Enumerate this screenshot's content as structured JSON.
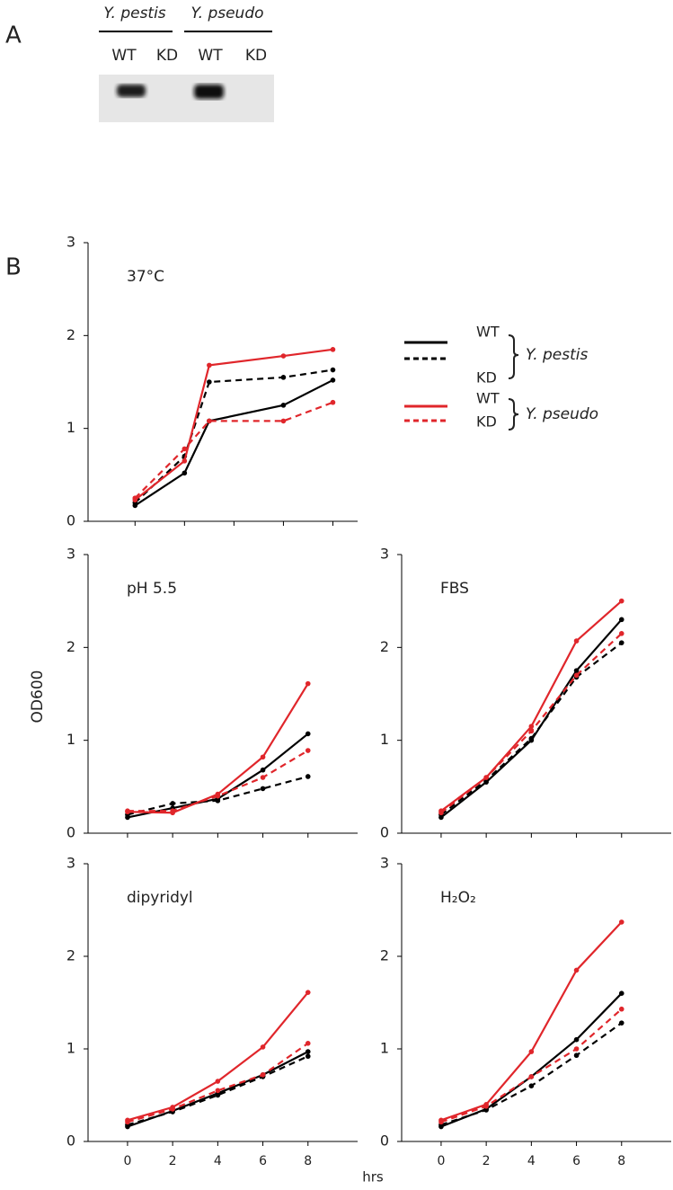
{
  "panel_a": {
    "label": "A",
    "groups": [
      {
        "name": "Y. pestis",
        "lanes": [
          "WT",
          "KD"
        ]
      },
      {
        "name": "Y. pseudo",
        "lanes": [
          "WT",
          "KD"
        ]
      }
    ]
  },
  "panel_b": {
    "label": "B",
    "ylabel": "OD600",
    "xlabel": "hrs"
  },
  "legend": [
    {
      "group": "Y. pestis",
      "items": [
        "WT",
        "KD"
      ]
    },
    {
      "group": "Y. pseudo",
      "items": [
        "WT",
        "KD"
      ]
    }
  ],
  "chart_data": [
    {
      "type": "line",
      "title": "37°C",
      "x": [
        0,
        2,
        3,
        6,
        8
      ],
      "xlim": [
        -1.9,
        9
      ],
      "xticks": [
        0,
        2,
        4,
        6,
        8
      ],
      "xtick_labels": false,
      "ylim": [
        0,
        3
      ],
      "yticks": [
        0,
        1,
        2,
        3
      ],
      "series": [
        {
          "color": "#000000",
          "dashed": false,
          "values": [
            0.17,
            0.52,
            1.08,
            1.25,
            1.52
          ]
        },
        {
          "color": "#000000",
          "dashed": true,
          "values": [
            0.2,
            0.7,
            1.5,
            1.55,
            1.63
          ]
        },
        {
          "color": "#e0262b",
          "dashed": false,
          "values": [
            0.23,
            0.65,
            1.68,
            1.78,
            1.85
          ]
        },
        {
          "color": "#e0262b",
          "dashed": true,
          "values": [
            0.25,
            0.78,
            1.08,
            1.08,
            1.28
          ]
        }
      ]
    },
    {
      "type": "line",
      "title": "pH 5.5",
      "x": [
        0,
        2,
        4,
        6,
        8
      ],
      "xlim": [
        -1.75,
        10.2
      ],
      "xticks": [
        0,
        2,
        4,
        6,
        8
      ],
      "xtick_labels": false,
      "ylim": [
        0,
        3
      ],
      "yticks": [
        0,
        1,
        2,
        3
      ],
      "series": [
        {
          "color": "#000000",
          "dashed": false,
          "values": [
            0.17,
            0.27,
            0.37,
            0.68,
            1.07
          ]
        },
        {
          "color": "#000000",
          "dashed": true,
          "values": [
            0.2,
            0.32,
            0.35,
            0.48,
            0.61
          ]
        },
        {
          "color": "#e0262b",
          "dashed": false,
          "values": [
            0.23,
            0.22,
            0.42,
            0.82,
            1.61
          ]
        },
        {
          "color": "#e0262b",
          "dashed": true,
          "values": [
            0.24,
            0.24,
            0.4,
            0.6,
            0.89
          ]
        }
      ]
    },
    {
      "type": "line",
      "title": "FBS",
      "x": [
        0,
        2,
        4,
        6,
        8
      ],
      "xlim": [
        -1.75,
        10.2
      ],
      "xticks": [
        0,
        2,
        4,
        6,
        8
      ],
      "xtick_labels": false,
      "ylim": [
        0,
        3
      ],
      "yticks": [
        0,
        1,
        2,
        3
      ],
      "series": [
        {
          "color": "#000000",
          "dashed": false,
          "values": [
            0.17,
            0.55,
            1.0,
            1.75,
            2.3
          ]
        },
        {
          "color": "#000000",
          "dashed": true,
          "values": [
            0.2,
            0.57,
            1.02,
            1.68,
            2.05
          ]
        },
        {
          "color": "#e0262b",
          "dashed": false,
          "values": [
            0.24,
            0.6,
            1.15,
            2.07,
            2.5
          ]
        },
        {
          "color": "#e0262b",
          "dashed": true,
          "values": [
            0.22,
            0.6,
            1.1,
            1.7,
            2.15
          ]
        }
      ]
    },
    {
      "type": "line",
      "title": "dipyridyl",
      "x": [
        0,
        2,
        4,
        6,
        8
      ],
      "xlim": [
        -1.75,
        10.2
      ],
      "xticks": [
        0,
        2,
        4,
        6,
        8
      ],
      "xtick_labels": true,
      "ylim": [
        0,
        3
      ],
      "yticks": [
        0,
        1,
        2,
        3
      ],
      "series": [
        {
          "color": "#000000",
          "dashed": false,
          "values": [
            0.16,
            0.33,
            0.52,
            0.72,
            0.97
          ]
        },
        {
          "color": "#000000",
          "dashed": true,
          "values": [
            0.18,
            0.32,
            0.5,
            0.7,
            0.92
          ]
        },
        {
          "color": "#e0262b",
          "dashed": false,
          "values": [
            0.23,
            0.37,
            0.65,
            1.02,
            1.61
          ]
        },
        {
          "color": "#e0262b",
          "dashed": true,
          "values": [
            0.21,
            0.35,
            0.55,
            0.72,
            1.06
          ]
        }
      ]
    },
    {
      "type": "line",
      "title": "H₂O₂",
      "x": [
        0,
        2,
        4,
        6,
        8
      ],
      "xlim": [
        -1.75,
        10.2
      ],
      "xticks": [
        0,
        2,
        4,
        6,
        8
      ],
      "xtick_labels": true,
      "ylim": [
        0,
        3
      ],
      "yticks": [
        0,
        1,
        2,
        3
      ],
      "series": [
        {
          "color": "#000000",
          "dashed": false,
          "values": [
            0.16,
            0.35,
            0.7,
            1.1,
            1.6
          ]
        },
        {
          "color": "#000000",
          "dashed": true,
          "values": [
            0.18,
            0.34,
            0.6,
            0.93,
            1.28
          ]
        },
        {
          "color": "#e0262b",
          "dashed": false,
          "values": [
            0.23,
            0.4,
            0.97,
            1.85,
            2.37
          ]
        },
        {
          "color": "#e0262b",
          "dashed": true,
          "values": [
            0.21,
            0.38,
            0.7,
            1.0,
            1.43
          ]
        }
      ]
    }
  ]
}
